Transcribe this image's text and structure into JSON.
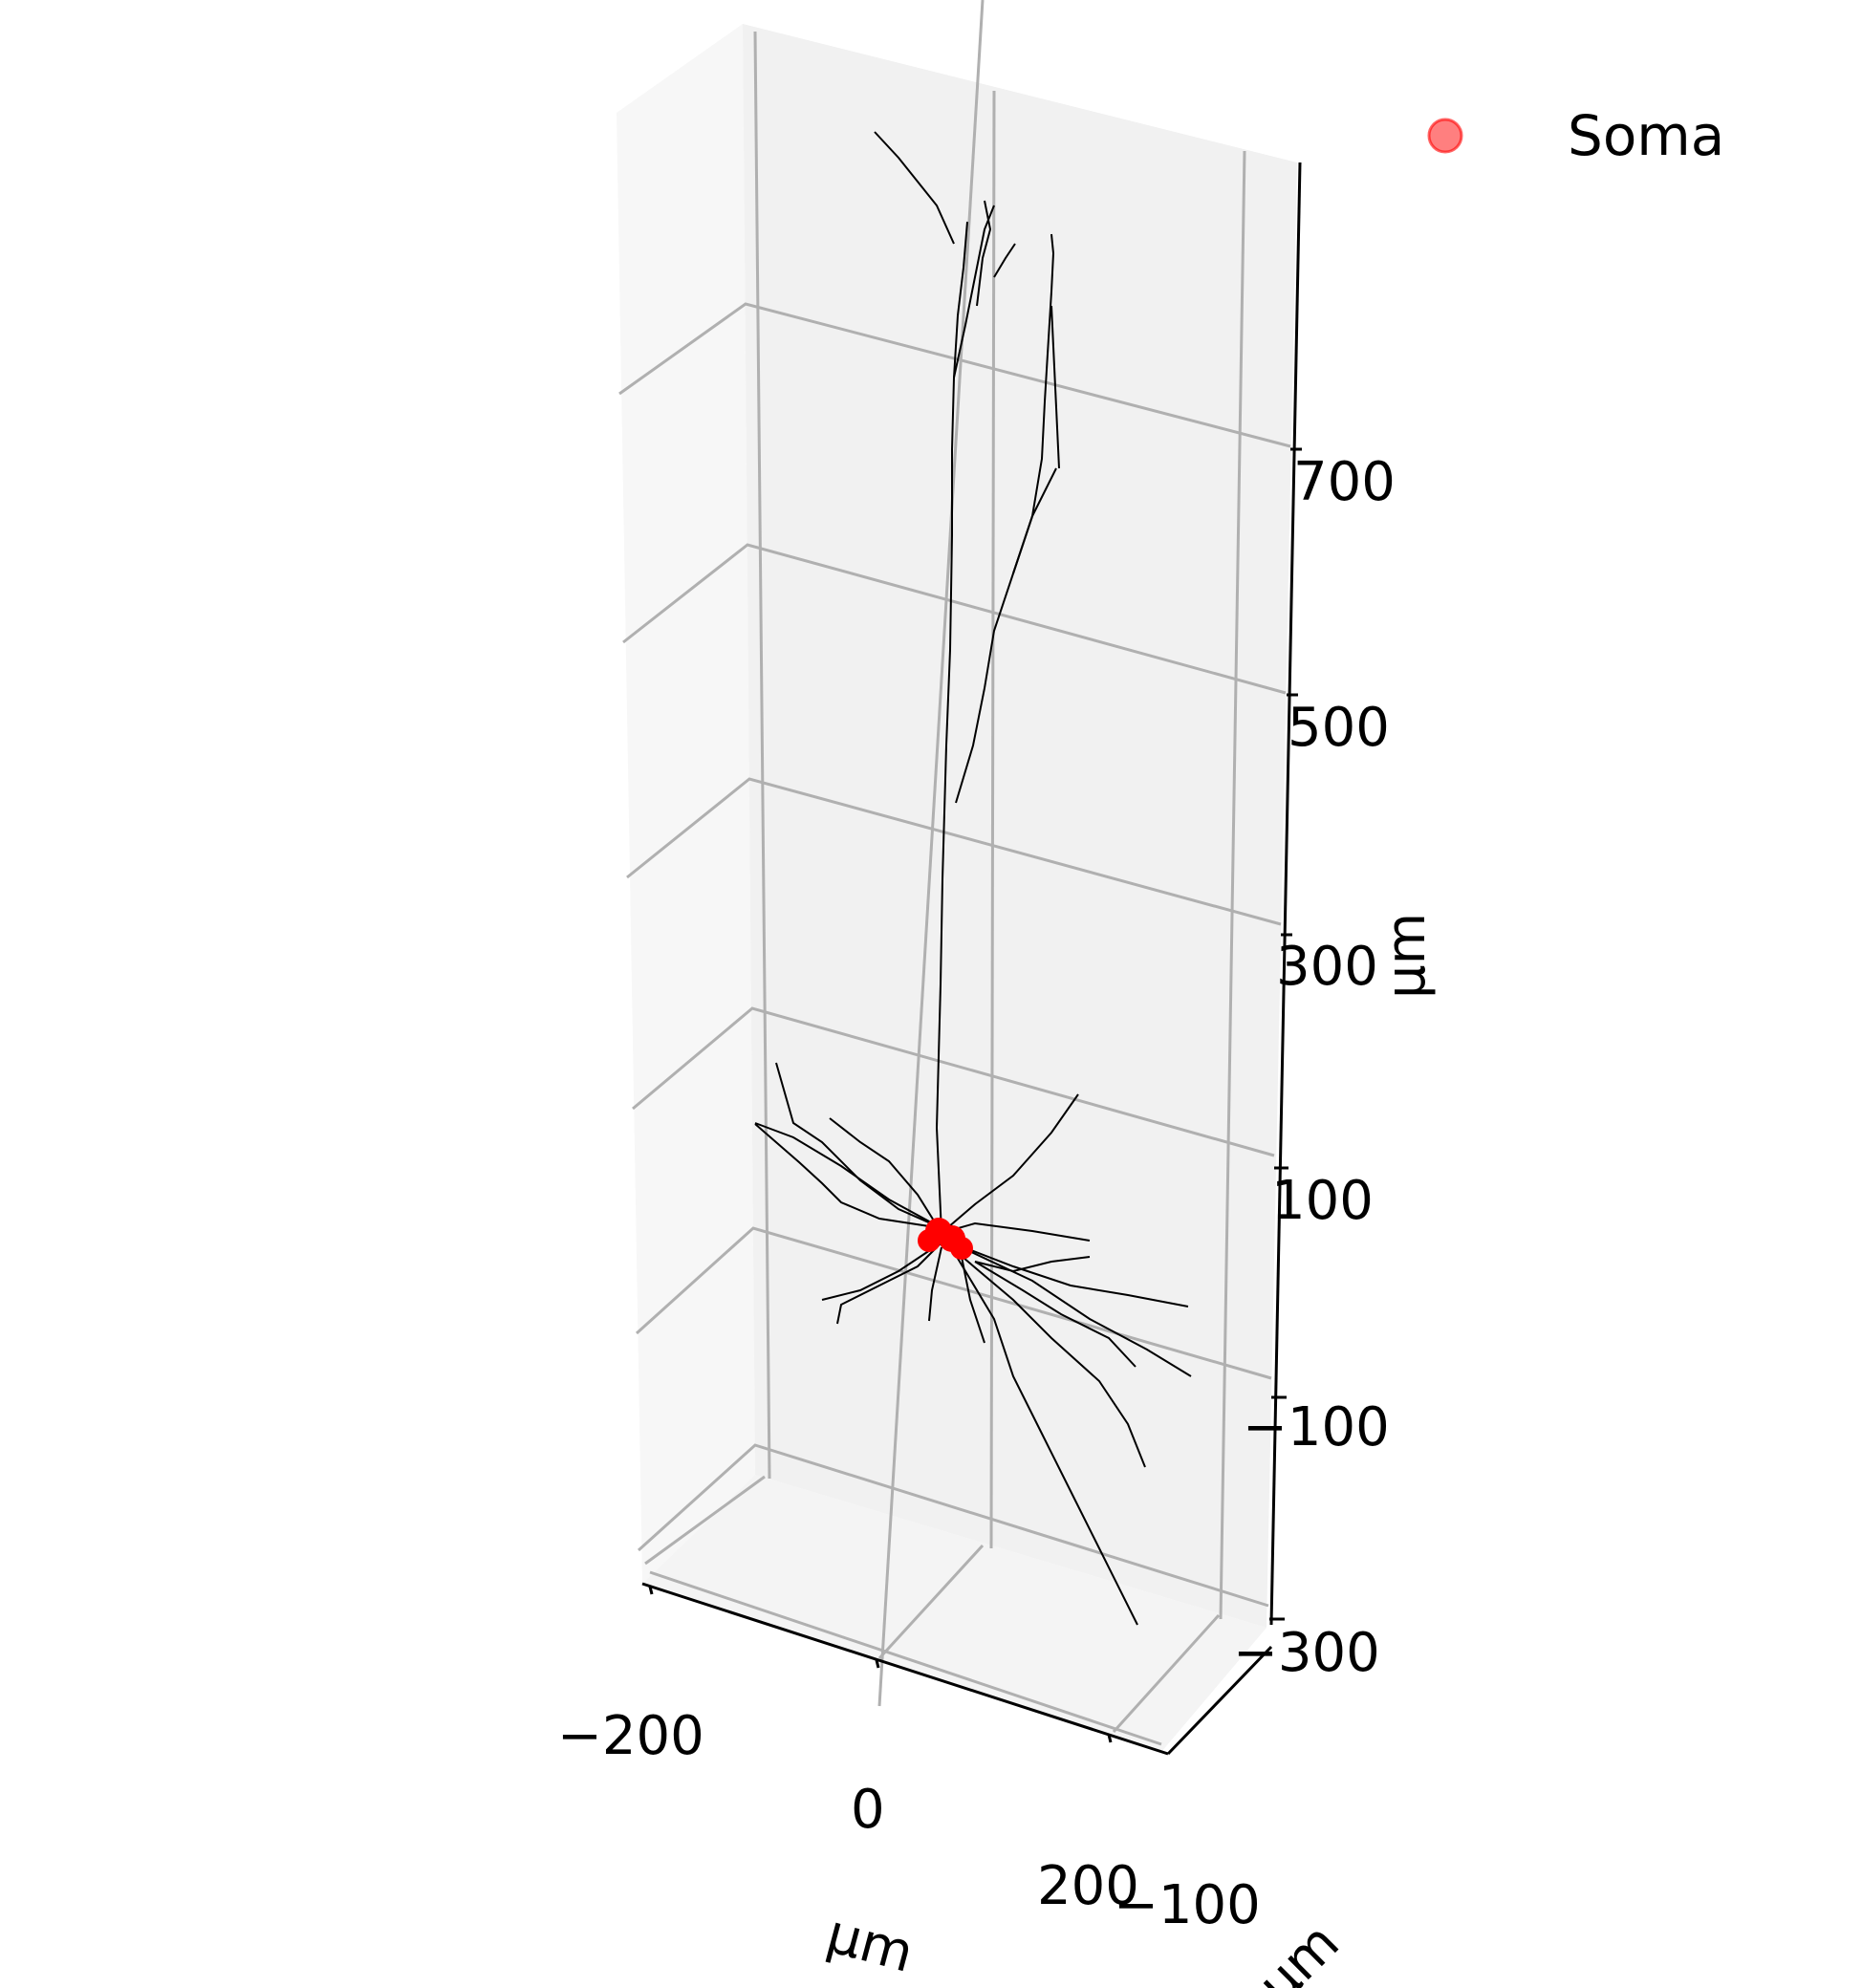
{
  "chart_data": {
    "type": "3d-line",
    "title": "",
    "xlabel": "μm",
    "ylabel": "μm",
    "zlabel": "μm",
    "x_ticks": [
      "−200",
      "0",
      "200"
    ],
    "y_ticks": [
      "−100"
    ],
    "z_ticks": [
      "−300",
      "−100",
      "100",
      "300",
      "500",
      "700"
    ],
    "grid": true,
    "legend": {
      "placement": "top-right",
      "entries": [
        {
          "label": "Soma",
          "color": "#ff0000",
          "marker": "circle"
        }
      ]
    },
    "series": [
      {
        "name": "Soma",
        "kind": "scatter",
        "color": "#ff0000",
        "points": [
          [
            -5,
            0,
            10
          ],
          [
            5,
            0,
            5
          ],
          [
            0,
            0,
            0
          ]
        ]
      },
      {
        "kind": "line",
        "color": "#000000",
        "description_of_data": "neuron morphology traces (apical dendrite up to ~750 μm, basal dendrites down to ~-300 μm)"
      }
    ]
  },
  "legend": {
    "soma_label": "Soma"
  },
  "colors": {
    "pane_left": "#f7f7f7",
    "pane_back": "#f1f1f1",
    "pane_floor": "#f4f4f4",
    "grid": "#b0b0b0",
    "soma": "#ff0000",
    "trace": "#000000"
  }
}
